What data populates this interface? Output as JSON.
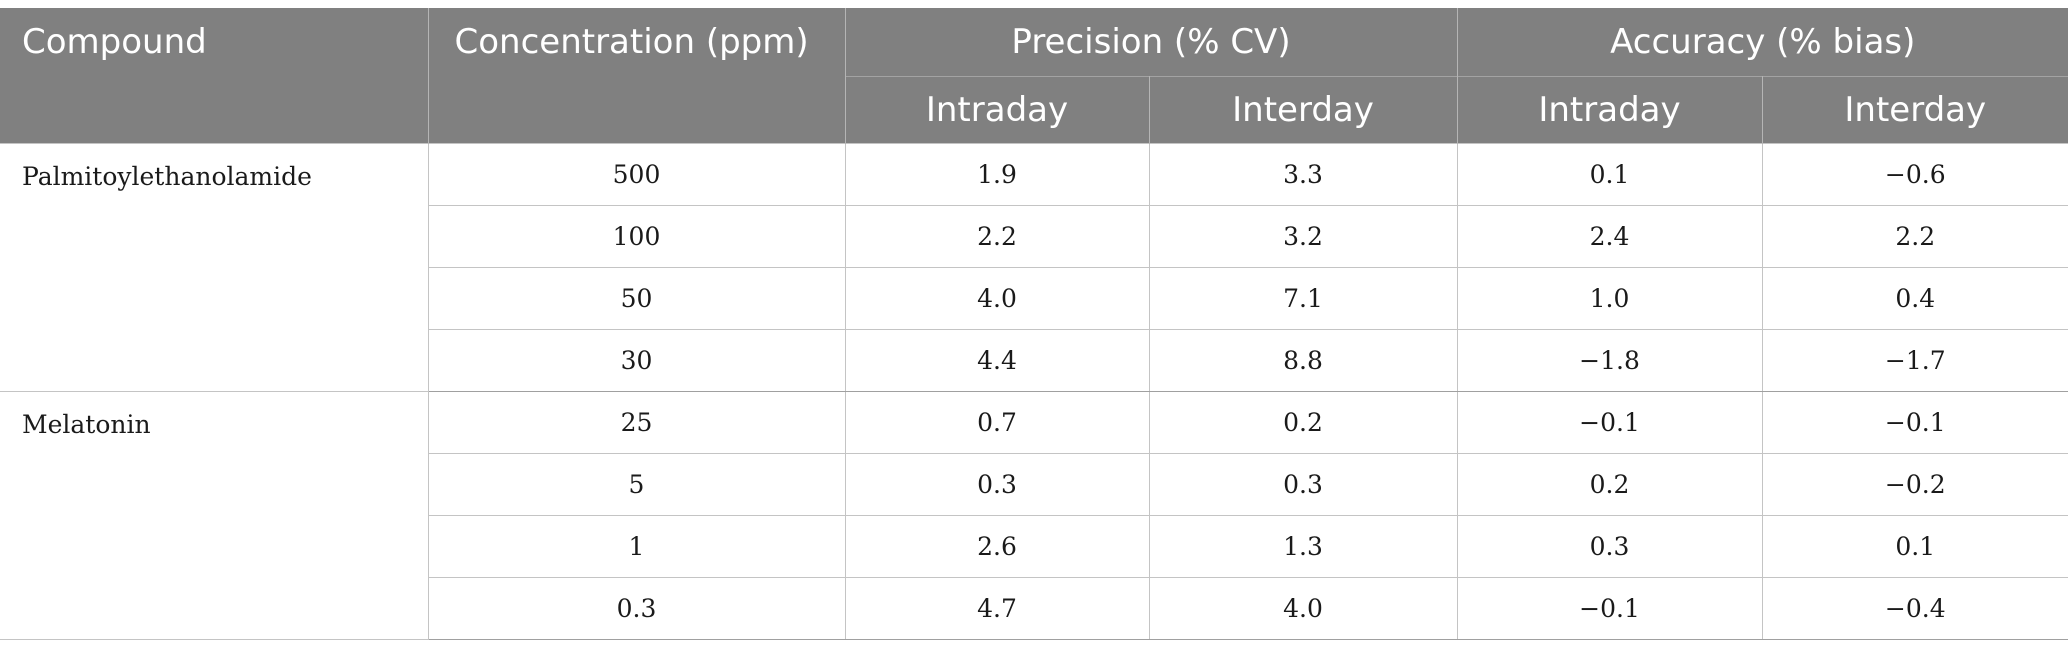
{
  "header": {
    "compound": "Compound",
    "concentration": "Concentration (ppm)",
    "precision": "Precision (% CV)",
    "accuracy": "Accuracy (% bias)",
    "intraday_precision": "Intraday",
    "interday_precision": "Interday",
    "intraday_accuracy": "Intraday",
    "interday_accuracy": "Interday"
  },
  "groups": [
    {
      "compound": "Palmitoylethanolamide",
      "rows": [
        {
          "conc": "500",
          "prec_intra": "1.9",
          "prec_inter": "3.3",
          "acc_intra": "0.1",
          "acc_inter": "−0.6"
        },
        {
          "conc": "100",
          "prec_intra": "2.2",
          "prec_inter": "3.2",
          "acc_intra": "2.4",
          "acc_inter": "2.2"
        },
        {
          "conc": "50",
          "prec_intra": "4.0",
          "prec_inter": "7.1",
          "acc_intra": "1.0",
          "acc_inter": "0.4"
        },
        {
          "conc": "30",
          "prec_intra": "4.4",
          "prec_inter": "8.8",
          "acc_intra": "−1.8",
          "acc_inter": "−1.7"
        }
      ]
    },
    {
      "compound": "Melatonin",
      "rows": [
        {
          "conc": "25",
          "prec_intra": "0.7",
          "prec_inter": "0.2",
          "acc_intra": "−0.1",
          "acc_inter": "−0.1"
        },
        {
          "conc": "5",
          "prec_intra": "0.3",
          "prec_inter": "0.3",
          "acc_intra": "0.2",
          "acc_inter": "−0.2"
        },
        {
          "conc": "1",
          "prec_intra": "2.6",
          "prec_inter": "1.3",
          "acc_intra": "0.3",
          "acc_inter": "0.1"
        },
        {
          "conc": "0.3",
          "prec_intra": "4.7",
          "prec_inter": "4.0",
          "acc_intra": "−0.1",
          "acc_inter": "−0.4"
        }
      ]
    }
  ]
}
